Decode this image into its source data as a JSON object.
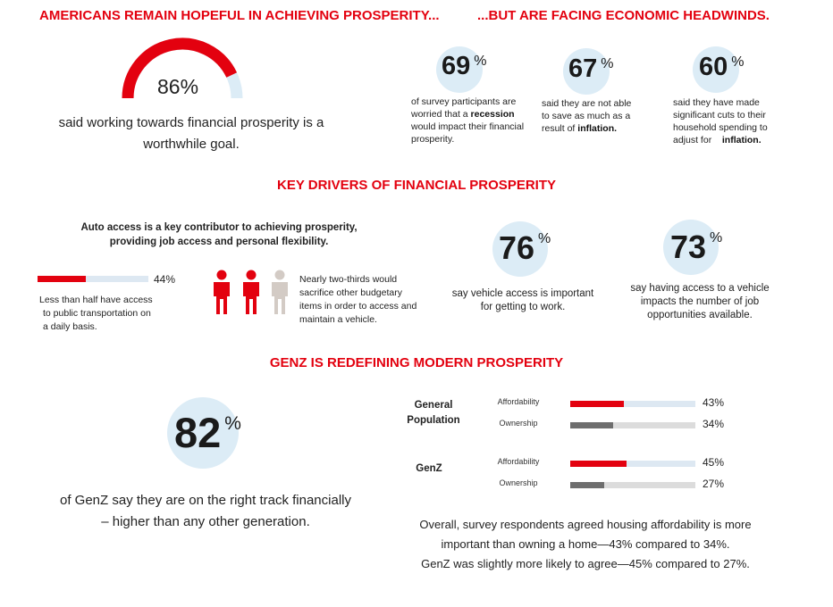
{
  "section1": {
    "left_heading": "AMERICANS REMAIN HOPEFUL IN ACHIEVING PROSPERITY...",
    "right_heading": "...BUT ARE FACING ECONOMIC HEADWINDS.",
    "gauge": {
      "value_label": "86%",
      "fraction": 0.86,
      "fill_color": "#e3010f",
      "track_color": "#dcecf6"
    },
    "gauge_caption_line1": "said working towards financial prosperity is a",
    "gauge_caption_line2": "worthwhile goal.",
    "stats": [
      {
        "number": "69",
        "pct": "%",
        "lines": [
          "of survey participants are",
          "worried that a ",
          "recession",
          "would impact their financial",
          "prosperity."
        ]
      },
      {
        "number": "67",
        "pct": "%",
        "lines": [
          "said they are not able",
          "to save as much as a",
          "result of ",
          "inflation."
        ]
      },
      {
        "number": "60",
        "pct": "%",
        "lines": [
          "said they have made",
          "significant cuts to their",
          "household spending to",
          "adjust for",
          "inflation."
        ]
      }
    ]
  },
  "section2": {
    "heading": "KEY DRIVERS OF FINANCIAL PROSPERITY",
    "intro_line1": "Auto access is a key contributor to achieving prosperity,",
    "intro_line2": "providing job access and personal flexibility.",
    "transit_bar": {
      "fraction": 0.44,
      "label": "44%"
    },
    "transit_caption": [
      "Less than half have access",
      "to public transportation on",
      "a daily basis."
    ],
    "people_caption": [
      "Nearly two-thirds would",
      "sacrifice other budgetary",
      "items in order to access and",
      "maintain a vehicle."
    ],
    "people_icons": [
      "person-icon-red",
      "person-icon-red",
      "person-icon-grey"
    ],
    "stat76": {
      "number": "76",
      "pct": "%",
      "lines": [
        "say vehicle access is important",
        "for getting to work."
      ]
    },
    "stat73": {
      "number": "73",
      "pct": "%",
      "lines": [
        "say having access to a vehicle",
        "impacts the number of job",
        "opportunities available."
      ]
    }
  },
  "section3": {
    "heading": "GENZ IS REDEFINING MODERN PROSPERITY",
    "stat82": {
      "number": "82",
      "pct": "%"
    },
    "caption_line1": "of GenZ say they are on the right track financially",
    "caption_line2": "– higher than any other generation.",
    "groups": [
      {
        "label_line1": "General",
        "label_line2": "Population",
        "bars": [
          {
            "name": "Affordability",
            "value": 43,
            "label": "43%",
            "color": "#e3010f",
            "track": "#dde8f2"
          },
          {
            "name": "Ownership",
            "value": 34,
            "label": "34%",
            "color": "#6e6e6e",
            "track": "#dcdcdc"
          }
        ]
      },
      {
        "label_line1": "GenZ",
        "label_line2": "",
        "bars": [
          {
            "name": "Affordability",
            "value": 45,
            "label": "45%",
            "color": "#e3010f",
            "track": "#dde8f2"
          },
          {
            "name": "Ownership",
            "value": 27,
            "label": "27%",
            "color": "#6e6e6e",
            "track": "#dcdcdc"
          }
        ]
      }
    ],
    "summary_line1": "Overall, survey respondents agreed housing affordability is more",
    "summary_line2": "important than owning a home—43% compared to 34%.",
    "summary_line3": "GenZ was slightly more likely to agree—45% compared to 27%."
  },
  "colors": {
    "accent": "#e3010f",
    "circle": "#dcecf6",
    "grey": "#6e6e6e"
  }
}
